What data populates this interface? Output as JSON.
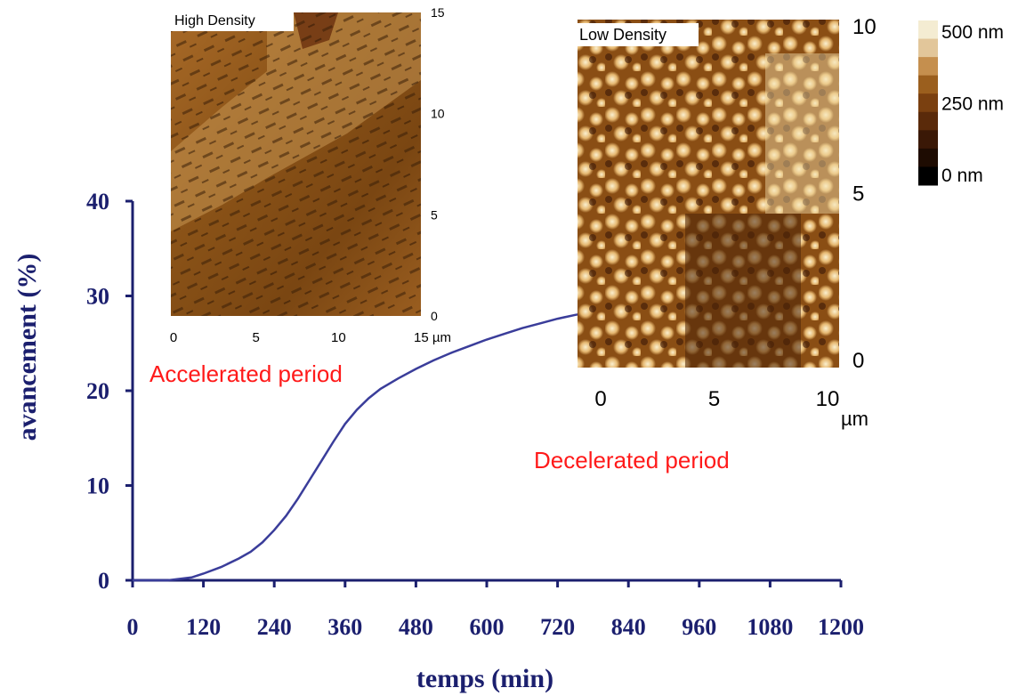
{
  "colors": {
    "axis": "#1b1f6e",
    "curve": "#3a3d9a",
    "annotation": "#ff1a1a"
  },
  "chart_data": {
    "type": "line",
    "xlabel": "temps (min)",
    "ylabel": "avancement (%)",
    "xlim": [
      0,
      1200
    ],
    "ylim": [
      0,
      40
    ],
    "x_ticks": [
      "0",
      "120",
      "240",
      "360",
      "480",
      "600",
      "720",
      "840",
      "960",
      "1080",
      "1200"
    ],
    "y_ticks": [
      "0",
      "10",
      "20",
      "30",
      "40"
    ],
    "grid": false,
    "series": [
      {
        "x": [
          0,
          60,
          100,
          120,
          150,
          180,
          200,
          220,
          240,
          260,
          280,
          300,
          320,
          340,
          360,
          380,
          400,
          420,
          450,
          480,
          510,
          540,
          570,
          600,
          630,
          660,
          690,
          720,
          750,
          760
        ],
        "y": [
          0,
          0,
          0.3,
          0.7,
          1.4,
          2.3,
          3.0,
          4.0,
          5.3,
          6.8,
          8.6,
          10.6,
          12.6,
          14.6,
          16.5,
          18.0,
          19.2,
          20.2,
          21.3,
          22.3,
          23.2,
          24.0,
          24.7,
          25.4,
          26.0,
          26.6,
          27.1,
          27.6,
          28.0,
          28.1
        ]
      }
    ],
    "annotations": [
      "Accelerated period",
      "Decelerated period"
    ],
    "insets": [
      {
        "title": "High Density",
        "x_ticks": [
          "0",
          "5",
          "10",
          "15 µm"
        ],
        "y_ticks": [
          "0",
          "5",
          "10",
          "15"
        ]
      },
      {
        "title": "Low Density",
        "x_ticks": [
          "0",
          "5",
          "10"
        ],
        "x_unit": "µm",
        "y_ticks": [
          "0",
          "5",
          "10"
        ]
      }
    ],
    "colorbar": {
      "labels": [
        "500 nm",
        "250 nm",
        "0 nm"
      ],
      "colors": [
        "#f4ecd2",
        "#e2c69a",
        "#c58f4e",
        "#9b5f1e",
        "#7a4010",
        "#5a2a0a",
        "#3a1806",
        "#1e0c02",
        "#000000"
      ]
    }
  }
}
